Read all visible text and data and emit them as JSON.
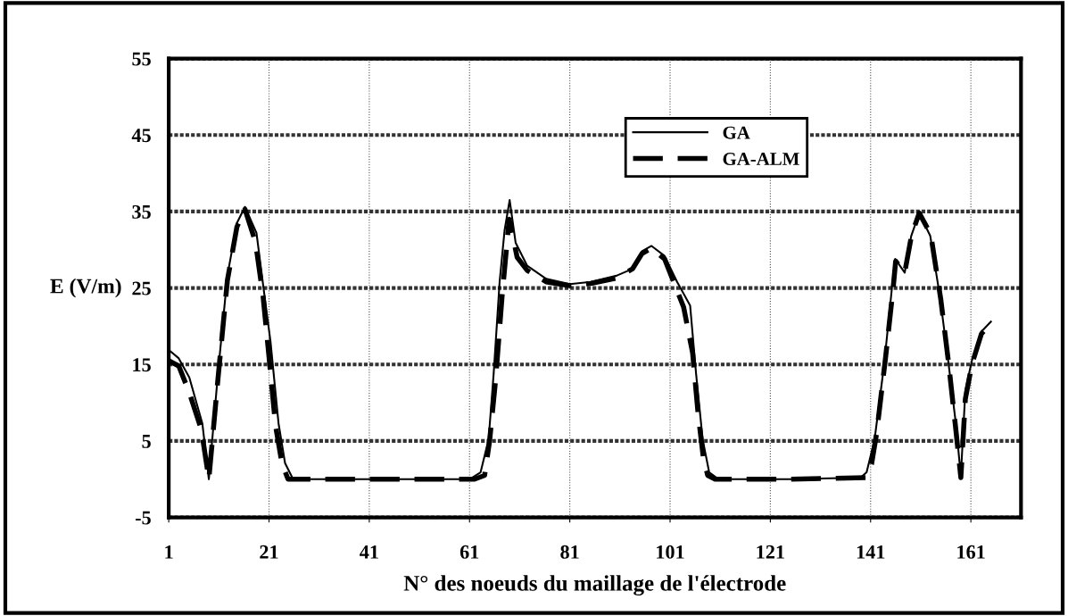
{
  "chart_data": {
    "type": "line",
    "xlabel": "N° des noeuds du maillage de l'électrode",
    "ylabel": "E (V/m)",
    "xlim": [
      1,
      171
    ],
    "ylim": [
      -5,
      55
    ],
    "xticks": [
      1,
      21,
      41,
      61,
      81,
      101,
      121,
      141,
      161
    ],
    "yticks": [
      -5,
      5,
      15,
      25,
      35,
      45,
      55
    ],
    "grid": true,
    "legend": "top right",
    "series": [
      {
        "name": "GA",
        "color": "#000000",
        "line_style": "solid",
        "x": [
          1,
          1.4,
          3,
          5.1,
          7.7,
          9,
          10.8,
          12.7,
          14.6,
          16.2,
          18.5,
          20,
          21.3,
          22.9,
          24.2,
          25.8,
          40,
          61,
          63.2,
          64.8,
          65.8,
          67,
          68,
          69,
          70.2,
          72.5,
          76.3,
          81,
          85.2,
          90.3,
          93.5,
          95.4,
          97.3,
          99.9,
          102.4,
          105,
          106.2,
          107.5,
          108.8,
          110.7,
          125,
          139,
          140.2,
          141.8,
          143.7,
          145.3,
          145.9,
          147.8,
          149.1,
          150.7,
          152.9,
          154.8,
          156.4,
          158,
          159,
          159.9,
          161.2,
          163.1,
          165
        ],
        "values": [
          16.5,
          16.7,
          15.8,
          13.3,
          7.3,
          0,
          13.7,
          26.6,
          33.5,
          35.6,
          32.2,
          24.5,
          18,
          7.3,
          2.1,
          0,
          0,
          0,
          0.9,
          5.2,
          13.7,
          25.8,
          32.6,
          36.5,
          30.9,
          27.9,
          26.2,
          25.5,
          25.8,
          26.6,
          27.5,
          29.8,
          30.5,
          29.2,
          25.8,
          22.7,
          13.7,
          5.2,
          0.9,
          0,
          0,
          0.2,
          0.9,
          5.2,
          15,
          25.3,
          28.8,
          27,
          31.8,
          34.8,
          31.8,
          24,
          15.9,
          7.3,
          0.4,
          11.6,
          15.5,
          19.3,
          20.6
        ]
      },
      {
        "name": "GA-ALM",
        "color": "#000000",
        "line_style": "dashed",
        "x": [
          1,
          3,
          5,
          7.5,
          9,
          10.8,
          12.7,
          14.6,
          16.2,
          18.3,
          19.8,
          21,
          22.3,
          23.6,
          24.8,
          40,
          62,
          64,
          65,
          66.2,
          67.5,
          68.9,
          70.5,
          72.5,
          76.3,
          81,
          85.2,
          90.3,
          93.5,
          95.4,
          97.3,
          99.9,
          102,
          103.7,
          105.5,
          106.6,
          107.6,
          108.5,
          110,
          125,
          140,
          141.2,
          142.2,
          144,
          145.5,
          146,
          147.8,
          149.2,
          150.7,
          153,
          155,
          156.5,
          158,
          159,
          159.9,
          161.2,
          163.1,
          165
        ],
        "values": [
          15.5,
          14.8,
          11.5,
          6.5,
          0,
          13,
          26,
          33,
          35.3,
          31,
          24,
          16,
          7,
          2,
          0,
          0,
          0,
          0.5,
          5,
          13,
          24,
          34,
          29,
          27.3,
          25.8,
          25.3,
          25.6,
          26.3,
          27.5,
          29.5,
          30.2,
          28.8,
          25.3,
          22.5,
          16.5,
          8.5,
          3,
          0.5,
          0,
          0,
          0.2,
          2,
          6,
          16,
          25,
          28.5,
          27,
          32,
          34.8,
          32,
          23.5,
          15.5,
          6.5,
          0.2,
          10.5,
          15,
          19,
          20.4
        ]
      }
    ]
  }
}
